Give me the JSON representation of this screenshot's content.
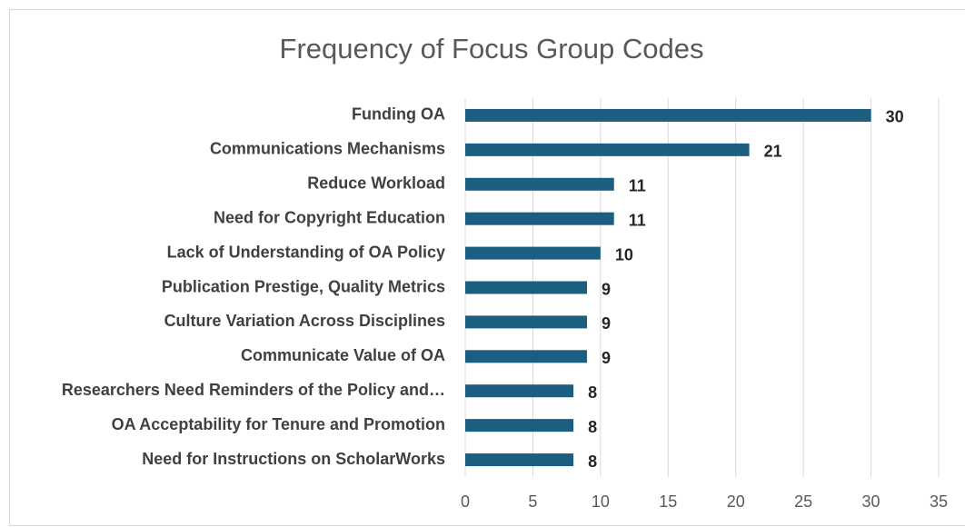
{
  "chart_data": {
    "type": "bar",
    "orientation": "horizontal",
    "title": "Frequency of Focus Group Codes",
    "categories": [
      "Funding OA",
      "Communications Mechanisms",
      "Reduce Workload",
      "Need for Copyright Education",
      "Lack of Understanding of OA Policy",
      "Publication Prestige, Quality Metrics",
      "Culture Variation Across Disciplines",
      "Communicate Value of OA",
      "Researchers Need Reminders of the Policy and…",
      "OA Acceptability for Tenure and Promotion",
      "Need for Instructions on ScholarWorks"
    ],
    "values": [
      30,
      21,
      11,
      11,
      10,
      9,
      9,
      9,
      8,
      8,
      8
    ],
    "color": "#1b5e80",
    "xlim": [
      0,
      35
    ],
    "xticks": [
      0,
      5,
      10,
      15,
      20,
      25,
      30,
      35
    ],
    "grid": true
  }
}
